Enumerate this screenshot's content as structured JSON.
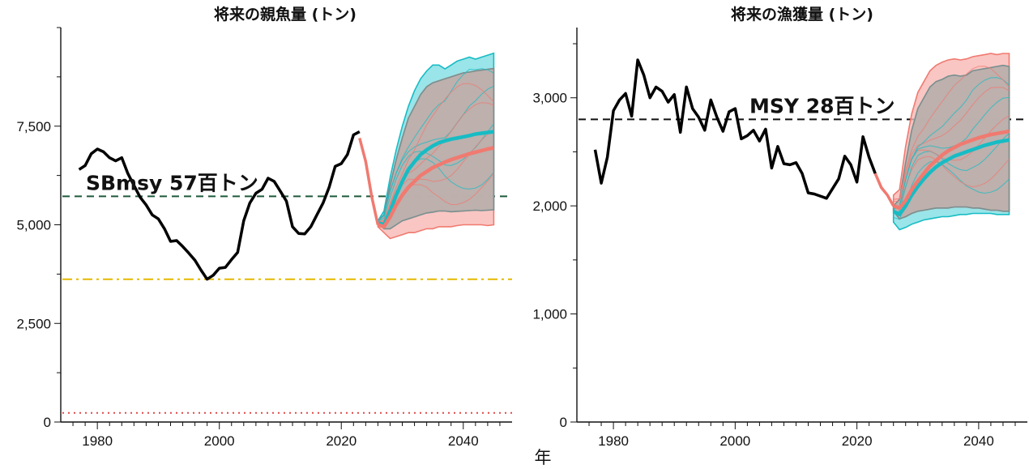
{
  "xlabel": "年",
  "chart_data": [
    {
      "type": "line",
      "title": "将来の親魚量 (トン)",
      "xlim": [
        1974,
        2048
      ],
      "ylim": [
        0,
        10000
      ],
      "xticks": [
        1980,
        2000,
        2020,
        2040
      ],
      "yticks": [
        0,
        2500,
        5000,
        7500
      ],
      "ytick_labels": [
        "0",
        "2,500",
        "5,000",
        "7,500"
      ],
      "annotation": "SBmsy 57百トン",
      "reference_lines": [
        {
          "y": 5720,
          "style": "dashed",
          "color": "#1e5a3a"
        },
        {
          "y": 3620,
          "style": "dashdot",
          "color": "#e6b800"
        },
        {
          "y": 230,
          "style": "dotted",
          "color": "#e04848"
        }
      ],
      "observed": {
        "color": "#000000",
        "x": [
          1977,
          1978,
          1979,
          1980,
          1981,
          1982,
          1983,
          1984,
          1985,
          1986,
          1987,
          1988,
          1989,
          1990,
          1991,
          1992,
          1993,
          1994,
          1995,
          1996,
          1997,
          1998,
          1999,
          2000,
          2001,
          2002,
          2003,
          2004,
          2005,
          2006,
          2007,
          2008,
          2009,
          2010,
          2011,
          2012,
          2013,
          2014,
          2015,
          2016,
          2017,
          2018,
          2019,
          2020,
          2021,
          2022,
          2023
        ],
        "y": [
          6400,
          6500,
          6800,
          6920,
          6850,
          6700,
          6620,
          6700,
          6300,
          6000,
          5700,
          5500,
          5250,
          5150,
          4900,
          4580,
          4600,
          4450,
          4280,
          4100,
          3850,
          3620,
          3720,
          3900,
          3920,
          4120,
          4300,
          5100,
          5550,
          5800,
          5900,
          6180,
          6100,
          5850,
          5600,
          4950,
          4780,
          4770,
          4950,
          5250,
          5550,
          5950,
          6480,
          6550,
          6780,
          7280,
          7360
        ]
      },
      "bridge": {
        "color": "#f07a70",
        "x": [
          2023,
          2024,
          2025,
          2026
        ],
        "y": [
          7200,
          6600,
          5700,
          5000
        ]
      },
      "projections": [
        {
          "color": "#17bcc4",
          "fill": "#7fdfe3",
          "x": [
            2026,
            2027,
            2028,
            2029,
            2030,
            2031,
            2032,
            2033,
            2034,
            2035,
            2036,
            2037,
            2038,
            2039,
            2040,
            2041,
            2042,
            2043,
            2044,
            2045
          ],
          "median": [
            5050,
            5000,
            5350,
            5750,
            6100,
            6400,
            6600,
            6780,
            6900,
            7000,
            7080,
            7130,
            7170,
            7200,
            7230,
            7260,
            7300,
            7320,
            7340,
            7360
          ],
          "upper": [
            5100,
            5350,
            6200,
            6900,
            7500,
            8000,
            8400,
            8700,
            8900,
            9050,
            9050,
            8950,
            9050,
            9150,
            9200,
            9250,
            9200,
            9250,
            9300,
            9350
          ],
          "lower": [
            5050,
            4900,
            4900,
            5000,
            5100,
            5150,
            5200,
            5250,
            5300,
            5320,
            5350,
            5350,
            5330,
            5340,
            5350,
            5360,
            5370,
            5360,
            5370,
            5380
          ]
        },
        {
          "color": "#f07a70",
          "fill": "#f8b8b4",
          "x": [
            2026,
            2027,
            2028,
            2029,
            2030,
            2031,
            2032,
            2033,
            2034,
            2035,
            2036,
            2037,
            2038,
            2039,
            2040,
            2041,
            2042,
            2043,
            2044,
            2045
          ],
          "median": [
            5000,
            4950,
            5200,
            5500,
            5750,
            5950,
            6100,
            6250,
            6350,
            6450,
            6520,
            6590,
            6650,
            6700,
            6750,
            6800,
            6840,
            6880,
            6920,
            6950
          ],
          "upper": [
            5100,
            5250,
            6000,
            6650,
            7200,
            7700,
            8000,
            8300,
            8500,
            8600,
            8650,
            8700,
            8750,
            8800,
            8850,
            8870,
            8900,
            8920,
            8940,
            8960
          ],
          "lower": [
            4950,
            4800,
            4650,
            4700,
            4750,
            4800,
            4800,
            4850,
            4900,
            4900,
            4950,
            4950,
            4950,
            4980,
            5000,
            5000,
            5000,
            5000,
            4980,
            5000
          ]
        }
      ],
      "overlap_fill": "#b8aeab",
      "overlap_edge": "#7a8f8f"
    },
    {
      "type": "line",
      "title": "将来の漁獲量 (トン)",
      "xlim": [
        1974,
        2048
      ],
      "ylim": [
        0,
        3650
      ],
      "xticks": [
        1980,
        2000,
        2020,
        2040
      ],
      "yticks": [
        0,
        1000,
        2000,
        3000
      ],
      "ytick_labels": [
        "0",
        "1,000",
        "2,000",
        "3,000"
      ],
      "annotation": "MSY 28百トン",
      "reference_lines": [
        {
          "y": 2800,
          "style": "dashed",
          "color": "#111111"
        }
      ],
      "observed": {
        "color": "#000000",
        "x": [
          1977,
          1978,
          1979,
          1980,
          1981,
          1982,
          1983,
          1984,
          1985,
          1986,
          1987,
          1988,
          1989,
          1990,
          1991,
          1992,
          1993,
          1994,
          1995,
          1996,
          1997,
          1998,
          1999,
          2000,
          2001,
          2002,
          2003,
          2004,
          2005,
          2006,
          2007,
          2008,
          2009,
          2010,
          2011,
          2012,
          2013,
          2014,
          2015,
          2016,
          2017,
          2018,
          2019,
          2020,
          2021,
          2022,
          2023
        ],
        "y": [
          2520,
          2210,
          2450,
          2880,
          2980,
          3040,
          2830,
          3350,
          3210,
          3000,
          3100,
          3060,
          2960,
          3030,
          2680,
          3100,
          2900,
          2820,
          2700,
          2980,
          2820,
          2690,
          2870,
          2900,
          2620,
          2650,
          2700,
          2600,
          2710,
          2350,
          2550,
          2390,
          2380,
          2400,
          2300,
          2120,
          2110,
          2090,
          2070,
          2160,
          2250,
          2460,
          2380,
          2220,
          2640,
          2450,
          2300
        ]
      },
      "bridge": {
        "color": "#f07a70",
        "x": [
          2023,
          2024,
          2025,
          2026
        ],
        "y": [
          2300,
          2170,
          2100,
          2000
        ]
      },
      "projections": [
        {
          "color": "#17bcc4",
          "fill": "#7fdfe3",
          "x": [
            2026,
            2027,
            2028,
            2029,
            2030,
            2031,
            2032,
            2033,
            2034,
            2035,
            2036,
            2037,
            2038,
            2039,
            2040,
            2041,
            2042,
            2043,
            2044,
            2045
          ],
          "median": [
            1950,
            1920,
            2000,
            2100,
            2180,
            2250,
            2310,
            2360,
            2400,
            2430,
            2460,
            2480,
            2500,
            2520,
            2540,
            2560,
            2575,
            2590,
            2600,
            2610
          ],
          "upper": [
            2000,
            2060,
            2400,
            2700,
            2900,
            3000,
            3100,
            3150,
            3170,
            3200,
            3210,
            3200,
            3210,
            3250,
            3260,
            3270,
            3280,
            3290,
            3300,
            3290
          ],
          "lower": [
            1850,
            1780,
            1800,
            1830,
            1850,
            1870,
            1880,
            1890,
            1900,
            1900,
            1910,
            1920,
            1920,
            1930,
            1930,
            1930,
            1930,
            1920,
            1920,
            1920
          ]
        },
        {
          "color": "#f07a70",
          "fill": "#f8b8b4",
          "x": [
            2026,
            2027,
            2028,
            2029,
            2030,
            2031,
            2032,
            2033,
            2034,
            2035,
            2036,
            2037,
            2038,
            2039,
            2040,
            2041,
            2042,
            2043,
            2044,
            2045
          ],
          "median": [
            2000,
            1980,
            2050,
            2150,
            2230,
            2300,
            2370,
            2420,
            2470,
            2510,
            2540,
            2570,
            2590,
            2610,
            2630,
            2645,
            2660,
            2670,
            2680,
            2690
          ],
          "upper": [
            2100,
            2150,
            2550,
            2850,
            3050,
            3150,
            3250,
            3300,
            3330,
            3350,
            3360,
            3350,
            3360,
            3380,
            3390,
            3400,
            3410,
            3400,
            3410,
            3410
          ],
          "lower": [
            1950,
            1880,
            1900,
            1930,
            1950,
            1960,
            1970,
            1980,
            1980,
            1980,
            1990,
            1990,
            1990,
            1980,
            1980,
            1970,
            1960,
            1960,
            1950,
            1950
          ]
        }
      ],
      "overlap_fill": "#b8aeab",
      "overlap_edge": "#7a8f8f"
    }
  ]
}
